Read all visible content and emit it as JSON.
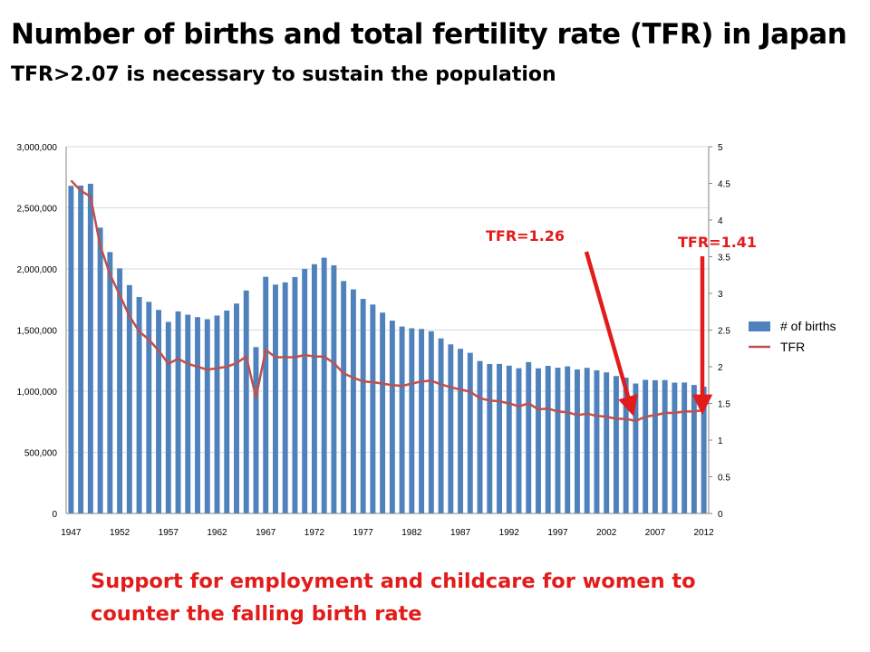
{
  "title": "Number of births and total fertility rate (TFR) in Japan",
  "subtitle": "TFR>2.07 is necessary to sustain the population",
  "footer": {
    "line1": "Support  for employment and childcare for women to",
    "line2": "counter the falling birth rate"
  },
  "colors": {
    "bars": "#4f81bd",
    "tfr_line": "#c0504d",
    "annotation": "#e21b1b",
    "grid": "#d9d9d9",
    "axis": "#868686"
  },
  "chart_data": {
    "type": "bar",
    "x": [
      1947,
      1948,
      1949,
      1950,
      1951,
      1952,
      1953,
      1954,
      1955,
      1956,
      1957,
      1958,
      1959,
      1960,
      1961,
      1962,
      1963,
      1964,
      1965,
      1966,
      1967,
      1968,
      1969,
      1970,
      1971,
      1972,
      1973,
      1974,
      1975,
      1976,
      1977,
      1978,
      1979,
      1980,
      1981,
      1982,
      1983,
      1984,
      1985,
      1986,
      1987,
      1988,
      1989,
      1990,
      1991,
      1992,
      1993,
      1994,
      1995,
      1996,
      1997,
      1998,
      1999,
      2000,
      2001,
      2002,
      2003,
      2004,
      2005,
      2006,
      2007,
      2008,
      2009,
      2010,
      2011,
      2012
    ],
    "x_tick_labels": [
      "1947",
      "1952",
      "1957",
      "1962",
      "1967",
      "1972",
      "1977",
      "1982",
      "1987",
      "1992",
      "1997",
      "2002",
      "2007",
      "2012"
    ],
    "series": [
      {
        "name": "# of births",
        "type": "bar",
        "axis": "left",
        "values": [
          2680000,
          2682000,
          2697000,
          2338000,
          2138000,
          2005000,
          1868000,
          1770000,
          1731000,
          1665000,
          1567000,
          1653000,
          1626000,
          1606000,
          1589000,
          1619000,
          1660000,
          1717000,
          1824000,
          1361000,
          1936000,
          1872000,
          1890000,
          1934000,
          2001000,
          2039000,
          2092000,
          2030000,
          1901000,
          1833000,
          1755000,
          1709000,
          1643000,
          1577000,
          1529000,
          1515000,
          1509000,
          1490000,
          1432000,
          1383000,
          1347000,
          1314000,
          1247000,
          1222000,
          1223000,
          1209000,
          1188000,
          1238000,
          1187000,
          1207000,
          1192000,
          1203000,
          1178000,
          1191000,
          1171000,
          1154000,
          1124000,
          1111000,
          1063000,
          1093000,
          1090000,
          1091000,
          1070000,
          1071000,
          1051000,
          1037000
        ]
      },
      {
        "name": "TFR",
        "type": "line",
        "axis": "right",
        "values": [
          4.54,
          4.4,
          4.32,
          3.65,
          3.26,
          2.98,
          2.69,
          2.48,
          2.37,
          2.22,
          2.04,
          2.11,
          2.04,
          2.0,
          1.96,
          1.98,
          2.0,
          2.05,
          2.14,
          1.58,
          2.23,
          2.13,
          2.13,
          2.13,
          2.16,
          2.14,
          2.14,
          2.05,
          1.91,
          1.85,
          1.8,
          1.79,
          1.77,
          1.75,
          1.74,
          1.77,
          1.8,
          1.81,
          1.76,
          1.72,
          1.69,
          1.66,
          1.57,
          1.54,
          1.53,
          1.5,
          1.46,
          1.5,
          1.42,
          1.43,
          1.39,
          1.38,
          1.34,
          1.36,
          1.33,
          1.32,
          1.29,
          1.29,
          1.26,
          1.32,
          1.34,
          1.37,
          1.37,
          1.39,
          1.39,
          1.41
        ]
      }
    ],
    "y_left": {
      "min": 0,
      "max": 3000000,
      "ticks": [
        "0",
        "500,000",
        "1,000,000",
        "1,500,000",
        "2,000,000",
        "2,500,000",
        "3,000,000"
      ]
    },
    "y_right": {
      "min": 0,
      "max": 5,
      "ticks": [
        "0",
        "0.5",
        "1",
        "1.5",
        "2",
        "2.5",
        "3",
        "3.5",
        "4",
        "4.5",
        "5"
      ]
    },
    "grid": true,
    "legend": {
      "placement": "right",
      "entries": [
        "# of births",
        "TFR"
      ]
    },
    "annotations": [
      {
        "text": "TFR=1.26",
        "year": 2005,
        "value": 1.26
      },
      {
        "text": "TFR=1.41",
        "year": 2012,
        "value": 1.41
      }
    ]
  }
}
